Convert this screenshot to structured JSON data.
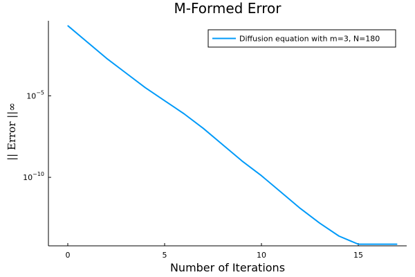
{
  "chart_data": {
    "type": "line",
    "title": "M-Formed Error",
    "xlabel": "Number of Iterations",
    "ylabel": "|| Error ||∞",
    "xlim": [
      -1,
      17.5
    ],
    "ylog": true,
    "ylim_log10": [
      -14.2,
      -0.4
    ],
    "x_ticks": [
      0,
      5,
      10,
      15
    ],
    "y_ticks": [
      {
        "value_log10": -5,
        "base": "10",
        "exp": "−5"
      },
      {
        "value_log10": -10,
        "base": "10",
        "exp": "−10"
      }
    ],
    "grid": false,
    "legend_position": "top-right",
    "series": [
      {
        "name": "Diffusion equation with m=3, N=180",
        "color": "#009af9",
        "x": [
          0,
          1,
          2,
          3,
          4,
          5,
          6,
          7,
          8,
          9,
          10,
          11,
          12,
          13,
          14,
          15,
          16,
          17
        ],
        "y_log10": [
          -0.7,
          -1.7,
          -2.7,
          -3.6,
          -4.5,
          -5.3,
          -6.1,
          -7.0,
          -8.0,
          -9.0,
          -9.9,
          -10.9,
          -11.9,
          -12.8,
          -13.6,
          -14.1,
          -14.1,
          -14.1
        ]
      }
    ]
  }
}
